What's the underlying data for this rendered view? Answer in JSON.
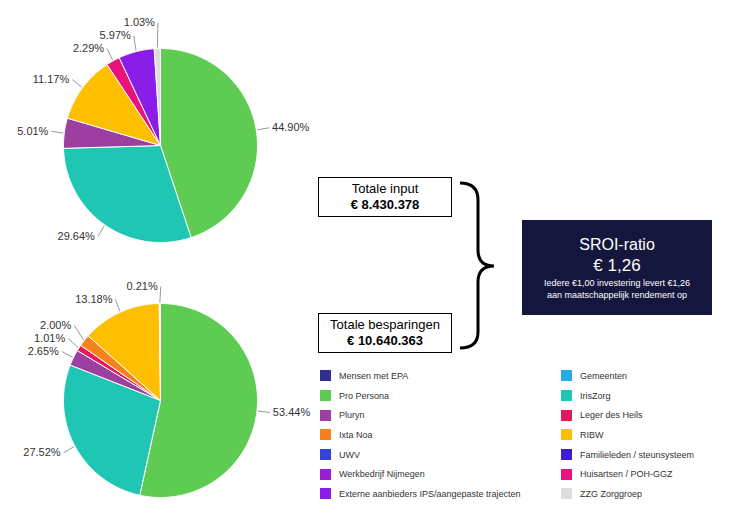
{
  "chart_data": [
    {
      "type": "pie",
      "categories": [
        "Pro Persona",
        "IrisZorg",
        "Pluryn",
        "RIBW",
        "Huisartsen / POH-GGZ",
        "Externe aanbieders IPS/aangepaste trajecten",
        "ZZG Zorggroep"
      ],
      "values": [
        44.9,
        29.64,
        5.01,
        11.17,
        2.29,
        5.97,
        1.03
      ],
      "value_labels": [
        "44.90%",
        "29.64%",
        "5.01%",
        "11.17%",
        "2.29%",
        "5.97%",
        "1.03%"
      ],
      "colors": [
        "#5ecb52",
        "#1ec6b3",
        "#9c3fa1",
        "#fdbf00",
        "#e8127a",
        "#8a1ee8",
        "#dddddd"
      ],
      "data_labels": true
    },
    {
      "type": "pie",
      "categories": [
        "Pro Persona",
        "IrisZorg",
        "Pluryn",
        "Leger des Heils",
        "Ixta Noa",
        "RIBW",
        "ZZG Zorggroep"
      ],
      "values": [
        53.44,
        27.52,
        2.65,
        1.01,
        2.0,
        13.18,
        0.21
      ],
      "value_labels": [
        "53.44%",
        "27.52%",
        "2.65%",
        "1.01%",
        "2.00%",
        "13.18%",
        "0.21%"
      ],
      "colors": [
        "#5ecb52",
        "#1ec6b3",
        "#9c3fa1",
        "#e6175e",
        "#f7821b",
        "#fdbf00",
        "#dddddd"
      ],
      "data_labels": true
    }
  ],
  "legend_items": [
    {
      "label": "Mensen met EPA",
      "color": "#2e3192"
    },
    {
      "label": "Gemeenten",
      "color": "#29abe2"
    },
    {
      "label": "Pro Persona",
      "color": "#5ecb52"
    },
    {
      "label": "IrisZorg",
      "color": "#1ec6b3"
    },
    {
      "label": "Pluryn",
      "color": "#9c3fa1"
    },
    {
      "label": "Leger des Heils",
      "color": "#e6175e"
    },
    {
      "label": "Ixta Noa",
      "color": "#f7821b"
    },
    {
      "label": "RIBW",
      "color": "#fdbf00"
    },
    {
      "label": "UWV",
      "color": "#3344d6"
    },
    {
      "label": "Familieleden / steunsysteem",
      "color": "#3a1fcf"
    },
    {
      "label": "Werkbedrijf Nijmegen",
      "color": "#9a1ecf"
    },
    {
      "label": "Huisartsen / POH-GGZ",
      "color": "#e8127a"
    },
    {
      "label": "Externe aanbieders IPS/aangepaste trajecten",
      "color": "#8a1ee8"
    },
    {
      "label": "ZZG Zorggroep",
      "color": "#dddddd"
    }
  ],
  "totals": [
    {
      "label": "Totale input",
      "value": "€ 8.430.378"
    },
    {
      "label": "Totale besparingen",
      "value": "€ 10.640.363"
    }
  ],
  "sroi": {
    "title": "SROI-ratio",
    "value": "€ 1,26",
    "text": "Iedere €1,00 investering levert €1,26 aan maatschappelijk rendement op"
  }
}
